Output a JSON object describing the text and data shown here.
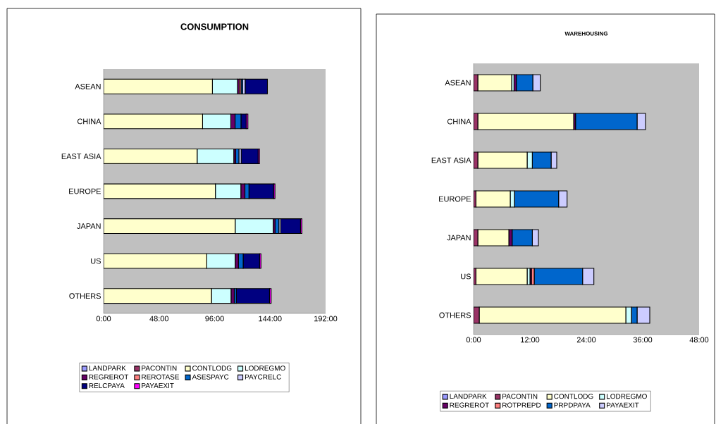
{
  "chart_data": [
    {
      "type": "bar",
      "orientation": "horizontal",
      "stacked": true,
      "title": "CONSUMPTION",
      "categories": [
        "ASEAN",
        "CHINA",
        "EAST ASIA",
        "EUROPE",
        "JAPAN",
        "US",
        "OTHERS"
      ],
      "series": [
        {
          "name": "LANDPARK",
          "color": "#9999ff",
          "values": [
            0,
            0,
            0,
            0,
            0,
            0,
            0
          ]
        },
        {
          "name": "PACONTIN",
          "color": "#993366",
          "values": [
            0,
            0,
            0,
            0,
            0,
            0,
            0
          ]
        },
        {
          "name": "CONTLODG",
          "color": "#ffffcc",
          "values": [
            94.1,
            85.6,
            80.9,
            96.7,
            113.8,
            89.2,
            93.3
          ]
        },
        {
          "name": "LODREGMO",
          "color": "#ccffff",
          "values": [
            21.7,
            24.4,
            31.7,
            22.0,
            32.9,
            24.6,
            16.9
          ]
        },
        {
          "name": "REGREROT",
          "color": "#660066",
          "values": [
            1.5,
            3.7,
            1.6,
            3.5,
            1.6,
            2.8,
            2.8
          ]
        },
        {
          "name": "REROTASE",
          "color": "#ff8080",
          "values": [
            1.5,
            0,
            0,
            0,
            0,
            0,
            0
          ]
        },
        {
          "name": "ASESPAYC",
          "color": "#0066cc",
          "values": [
            1.4,
            5.1,
            2.8,
            3.5,
            3.3,
            4.1,
            1.8
          ]
        },
        {
          "name": "PAYCRELC",
          "color": "#ccccff",
          "values": [
            2.2,
            0,
            2.0,
            0,
            1.6,
            0,
            0
          ]
        },
        {
          "name": "RELCPAYA",
          "color": "#000080",
          "values": [
            19.3,
            4.5,
            14.6,
            21.3,
            17.1,
            14.2,
            28.7
          ]
        },
        {
          "name": "PAYAEXIT",
          "color": "#ff00ff",
          "values": [
            0,
            1.5,
            1.2,
            1.2,
            1.2,
            1.2,
            1.4
          ]
        }
      ],
      "xlim": [
        0,
        192
      ],
      "xticks": [
        {
          "value": 0,
          "label": "0:00"
        },
        {
          "value": 48,
          "label": "48:00"
        },
        {
          "value": 96,
          "label": "96:00"
        },
        {
          "value": 144,
          "label": "144:00"
        },
        {
          "value": 192,
          "label": "192:00"
        }
      ],
      "legend": "bottom"
    },
    {
      "type": "bar",
      "orientation": "horizontal",
      "stacked": true,
      "title": "WAREHOUSING",
      "categories": [
        "ASEAN",
        "CHINA",
        "EAST ASIA",
        "EUROPE",
        "JAPAN",
        "US",
        "OTHERS"
      ],
      "series": [
        {
          "name": "LANDPARK",
          "color": "#9999ff",
          "values": [
            0,
            0,
            0,
            0,
            0,
            0,
            0
          ]
        },
        {
          "name": "PACONTIN",
          "color": "#993366",
          "values": [
            0.9,
            0.9,
            0.9,
            0.5,
            0.9,
            0.5,
            1.2
          ]
        },
        {
          "name": "CONTLODG",
          "color": "#ffffcc",
          "values": [
            7.2,
            20.4,
            10.5,
            7.3,
            6.6,
            10.9,
            31.2
          ]
        },
        {
          "name": "LODREGMO",
          "color": "#ccffff",
          "values": [
            0.5,
            0,
            1.1,
            0.9,
            0,
            0.6,
            1.2
          ]
        },
        {
          "name": "REGREROT",
          "color": "#660066",
          "values": [
            0.5,
            0.4,
            0,
            0,
            0.7,
            0.3,
            0
          ]
        },
        {
          "name": "ROTPREPD",
          "color": "#ff8080",
          "values": [
            0,
            0,
            0,
            0,
            0,
            0.6,
            0
          ]
        },
        {
          "name": "PRPDPAYA",
          "color": "#0066cc",
          "values": [
            3.5,
            13.1,
            4.0,
            9.4,
            4.3,
            10.3,
            1.2
          ]
        },
        {
          "name": "PAYAEXIT",
          "color": "#ccccff",
          "values": [
            1.6,
            1.8,
            1.2,
            1.8,
            1.3,
            2.4,
            2.7
          ]
        }
      ],
      "xlim": [
        0,
        48
      ],
      "xticks": [
        {
          "value": 0,
          "label": "0:00"
        },
        {
          "value": 12,
          "label": "12:00"
        },
        {
          "value": 24,
          "label": "24:00"
        },
        {
          "value": 36,
          "label": "36:00"
        },
        {
          "value": 48,
          "label": "48:00"
        }
      ],
      "legend": "bottom"
    }
  ]
}
